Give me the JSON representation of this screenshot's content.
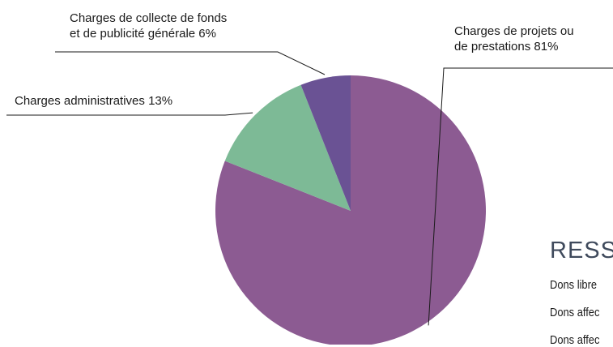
{
  "chart_data": {
    "type": "pie",
    "start": "12 o'clock, clockwise",
    "slices": [
      {
        "label_lines": [
          "Charges de projets ou",
          "de prestations 81%"
        ],
        "value": 81,
        "color": "#8c5b92"
      },
      {
        "label_lines": [
          "Charges administratives 13%"
        ],
        "value": 13,
        "color": "#7dba96"
      },
      {
        "label_lines": [
          "Charges de collecte de fonds",
          "et de publicité générale 6%"
        ],
        "value": 6,
        "color": "#6a5294"
      }
    ],
    "leader_line_color": "#1a1a1a"
  },
  "side_panel": {
    "heading": "RESS",
    "rows": [
      "Dons libre",
      "Dons affec",
      "Dons affec"
    ],
    "heading_color": "#3f4a5c"
  }
}
